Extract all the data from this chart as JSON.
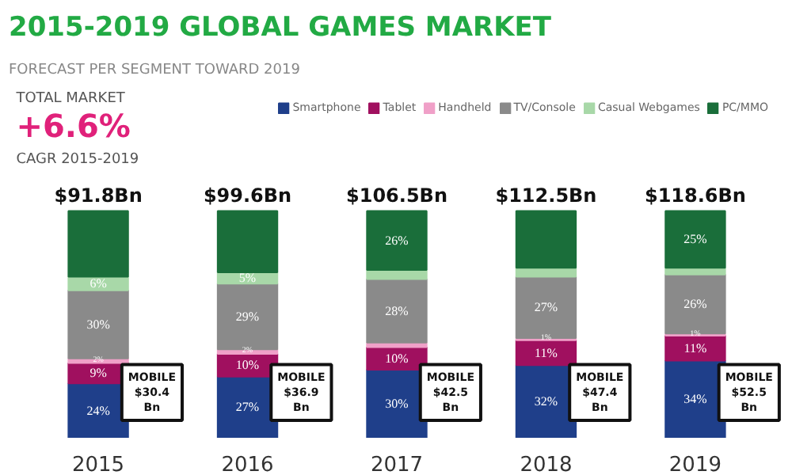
{
  "chart_data": {
    "type": "bar",
    "stacked": true,
    "title": "2015-2019 GLOBAL GAMES MARKET",
    "subtitle": "FORECAST PER SEGMENT TOWARD 2019",
    "categories": [
      "2015",
      "2016",
      "2017",
      "2018",
      "2019"
    ],
    "series": [
      {
        "name": "Smartphone",
        "color": "#1f3f8a",
        "values": [
          24,
          27,
          30,
          32,
          34
        ],
        "value_labels": [
          "24%",
          "27%",
          "30%",
          "32%",
          "34%"
        ]
      },
      {
        "name": "Tablet",
        "color": "#a0105f",
        "values": [
          9,
          10,
          10,
          11,
          11
        ],
        "value_labels": [
          "9%",
          "10%",
          "10%",
          "11%",
          "11%"
        ]
      },
      {
        "name": "Handheld",
        "color": "#f0a0c8",
        "values": [
          2,
          2,
          2,
          1,
          1
        ],
        "value_labels": [
          "2%",
          "2%",
          null,
          "1%",
          "1%"
        ]
      },
      {
        "name": "TV/Console",
        "color": "#8a8a8a",
        "values": [
          30,
          29,
          28,
          27,
          26
        ],
        "value_labels": [
          "30%",
          "29%",
          "28%",
          "27%",
          "26%"
        ]
      },
      {
        "name": "Casual Webgames",
        "color": "#a8d8a8",
        "values": [
          6,
          5,
          4,
          4,
          3
        ],
        "value_labels": [
          "6%",
          "5%",
          null,
          null,
          null
        ]
      },
      {
        "name": "PC/MMO",
        "color": "#1a6e3a",
        "values": [
          29,
          27,
          26,
          25,
          25
        ],
        "value_labels": [
          null,
          null,
          "26%",
          null,
          "25%"
        ]
      }
    ],
    "legend": "top right",
    "annotations": [
      "TOTAL MARKET",
      "+6.6%",
      "CAGR 2015-2019",
      "MOBILE\n$30.4\nBn",
      "MOBILE\n$36.9\nBn",
      "MOBILE\n$42.5\nBn",
      "MOBILE\n$47.4\nBn",
      "MOBILE\n$52.5\nBn",
      {
        "text": "$91.8Bn",
        "x": "2015",
        "y": 100
      },
      {
        "text": "$99.6Bn",
        "x": "2016",
        "y": 100
      },
      {
        "text": "$106.5Bn",
        "x": "2017",
        "y": 100
      },
      {
        "text": "$112.5Bn",
        "x": "2018",
        "y": 100
      },
      {
        "text": "$118.6Bn",
        "x": "2019",
        "y": 100
      }
    ]
  }
}
